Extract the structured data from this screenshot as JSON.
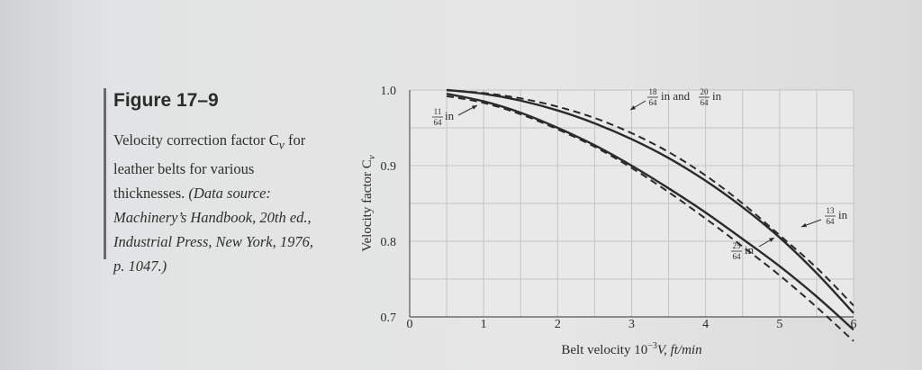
{
  "figure": {
    "title": "Figure 17–9",
    "caption_plain": "Velocity correction factor C",
    "caption_sub": "v",
    "caption_line2": "for leather belts for various",
    "caption_line3a": "thicknesses. ",
    "caption_source": "(Data source: Machinery’s Handbook, 20th ed., Industrial Press, New York, 1976, p. 1047.)"
  },
  "chart_data": {
    "type": "line",
    "xlabel": "Belt velocity 10",
    "xlabel_sup": "−3",
    "xlabel_rest": "V, ft/min",
    "ylabel": "Velocity factor C",
    "ylabel_sub": "v",
    "xlim": [
      0,
      6
    ],
    "ylim": [
      0.7,
      1.0
    ],
    "x_ticks": [
      "0",
      "1",
      "2",
      "3",
      "4",
      "5",
      "6"
    ],
    "y_ticks": [
      "0.7",
      "0.8",
      "0.9",
      "1.0"
    ],
    "grid": true,
    "x_minor_step": 0.5,
    "y_minor_step": 0.05,
    "series": [
      {
        "name": "11/64 in",
        "style": "solid",
        "x": [
          0.5,
          1,
          1.5,
          2,
          2.5,
          3,
          3.5,
          4,
          4.5,
          5,
          5.5,
          6
        ],
        "y": [
          1.0,
          0.995,
          0.986,
          0.973,
          0.956,
          0.935,
          0.91,
          0.88,
          0.845,
          0.805,
          0.758,
          0.705
        ]
      },
      {
        "name": "18/64 in and 20/64 in",
        "style": "dashed",
        "x": [
          0.5,
          1,
          1.5,
          2,
          2.5,
          3,
          3.5,
          4,
          4.5,
          5,
          5.5,
          6
        ],
        "y": [
          1.0,
          0.996,
          0.989,
          0.978,
          0.963,
          0.943,
          0.918,
          0.887,
          0.85,
          0.808,
          0.765,
          0.715
        ]
      },
      {
        "name": "13/64 in",
        "style": "solid",
        "x": [
          0.5,
          1,
          1.5,
          2,
          2.5,
          3,
          3.5,
          4,
          4.5,
          5,
          5.5,
          6
        ],
        "y": [
          0.995,
          0.985,
          0.97,
          0.95,
          0.927,
          0.9,
          0.87,
          0.838,
          0.803,
          0.767,
          0.727,
          0.683
        ]
      },
      {
        "name": "25/64 in",
        "style": "dashed",
        "x": [
          0.5,
          1,
          1.5,
          2,
          2.5,
          3,
          3.5,
          4,
          4.5,
          5,
          5.5,
          6
        ],
        "y": [
          0.992,
          0.983,
          0.968,
          0.948,
          0.925,
          0.897,
          0.865,
          0.83,
          0.793,
          0.755,
          0.713,
          0.668
        ]
      }
    ],
    "annotations": [
      {
        "num": "11",
        "den": "64",
        "text": "in",
        "series": "11/64 in"
      },
      {
        "num": "18",
        "den": "64",
        "text": "in and",
        "num2": "20",
        "den2": "64",
        "text2": "in",
        "series": "18/64 in and 20/64 in"
      },
      {
        "num": "13",
        "den": "64",
        "text": "in",
        "series": "13/64 in"
      },
      {
        "num": "25",
        "den": "64",
        "text": "in",
        "series": "25/64 in"
      }
    ]
  }
}
